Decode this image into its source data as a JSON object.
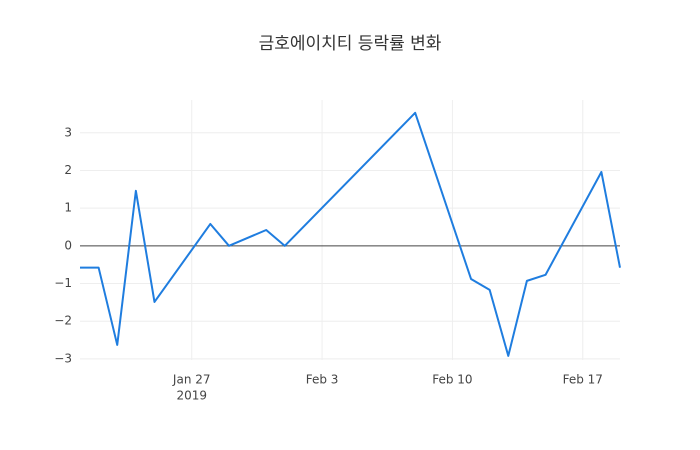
{
  "chart_data": {
    "type": "line",
    "title": "금호에이치티 등락률 변화",
    "x": [
      "2019-01-21",
      "2019-01-22",
      "2019-01-23",
      "2019-01-24",
      "2019-01-25",
      "2019-01-28",
      "2019-01-29",
      "2019-01-31",
      "2019-02-01",
      "2019-02-08",
      "2019-02-11",
      "2019-02-12",
      "2019-02-13",
      "2019-02-14",
      "2019-02-15",
      "2019-02-18",
      "2019-02-19"
    ],
    "series": [
      {
        "color": "#1f7ddf",
        "values": [
          -0.58,
          -0.58,
          -2.63,
          1.46,
          -1.49,
          0.58,
          0,
          0.42,
          0,
          3.53,
          -0.88,
          -1.17,
          -2.92,
          -0.93,
          -0.77,
          1.96,
          -0.58
        ]
      }
    ],
    "xlim": [
      "2019-01-21",
      "2019-02-19"
    ],
    "xticks": [
      {
        "value": "2019-01-27",
        "label": "Jan 27"
      },
      {
        "value": "2019-02-03",
        "label": "Feb 3"
      },
      {
        "value": "2019-02-10",
        "label": "Feb 10"
      },
      {
        "value": "2019-02-17",
        "label": "Feb 17"
      }
    ],
    "x_year": "2019",
    "ylim": [
      -3.03,
      3.87
    ],
    "yticks": [
      {
        "value": -3,
        "label": "−3"
      },
      {
        "value": -2,
        "label": "−2"
      },
      {
        "value": -1,
        "label": "−1"
      },
      0,
      1,
      2,
      3
    ],
    "grid": true,
    "zeroline": true
  }
}
